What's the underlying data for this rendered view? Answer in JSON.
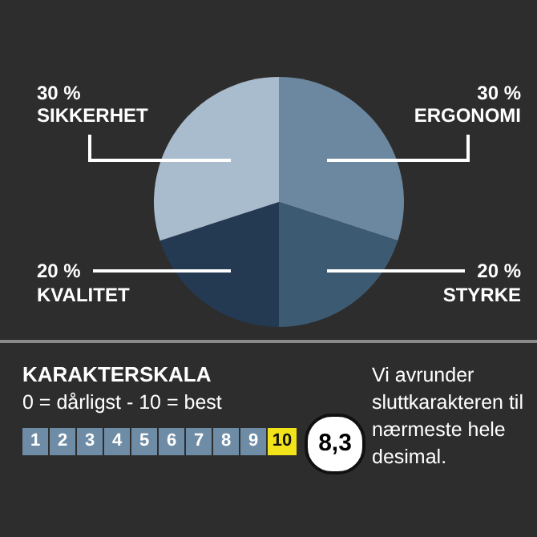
{
  "chart_data": {
    "type": "pie",
    "categories": [
      "ERGONOMI",
      "STYRKE",
      "KVALITET",
      "SIKKERHET"
    ],
    "values": [
      30,
      20,
      20,
      30
    ],
    "colors": [
      "#6c88a0",
      "#3d5a73",
      "#243a53",
      "#a9bccd"
    ],
    "value_labels": [
      "30 %",
      "20 %",
      "20 %",
      "30 %"
    ],
    "annotations": [
      "KARAKTERSKALA",
      "0 = dårligst - 10 = best",
      "1",
      "2",
      "3",
      "4",
      "5",
      "6",
      "7",
      "8",
      "9",
      "10",
      "8,3",
      "Vi avrunder sluttkarakteren til nærmeste hele desimal."
    ]
  }
}
